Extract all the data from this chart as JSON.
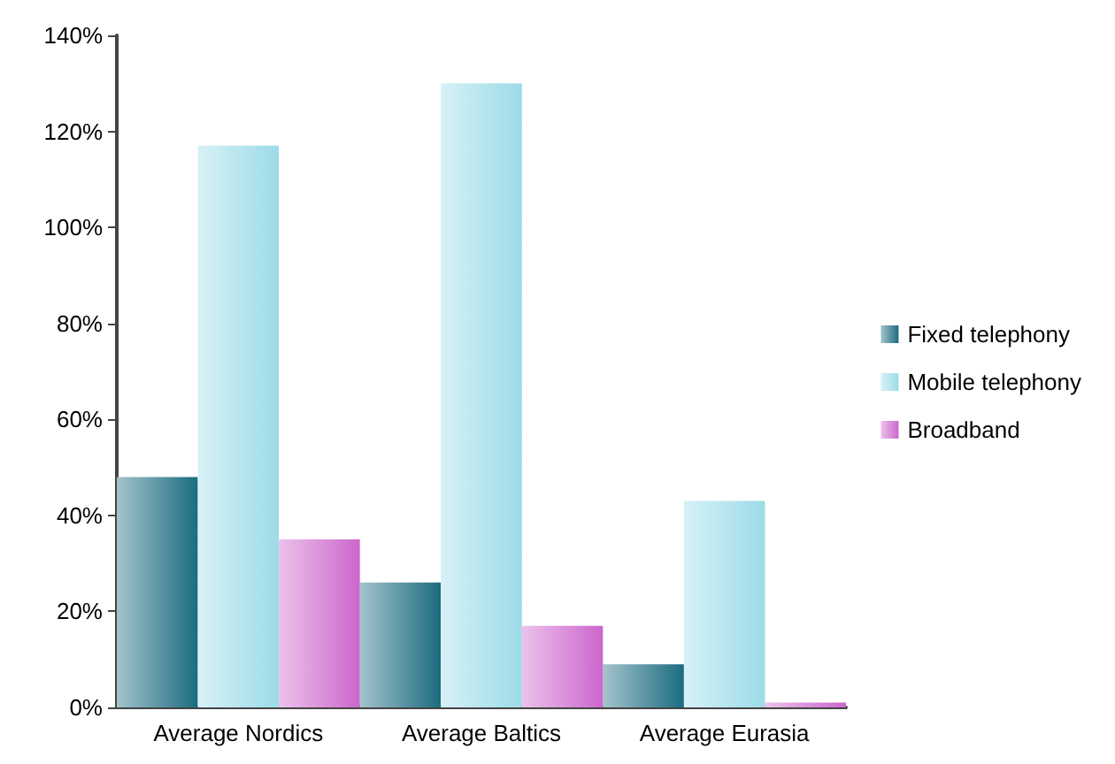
{
  "chart_data": {
    "type": "bar",
    "categories": [
      "Average Nordics",
      "Average Baltics",
      "Average Eurasia"
    ],
    "series": [
      {
        "name": "Fixed telephony",
        "color": "#1b6b80",
        "values": [
          48,
          26,
          9
        ]
      },
      {
        "name": "Mobile telephony",
        "color": "#9cdbe8",
        "values": [
          117,
          130,
          43
        ]
      },
      {
        "name": "Broadband",
        "color": "#cc66cc",
        "values": [
          35,
          17,
          1
        ]
      }
    ],
    "ylim": [
      0,
      140
    ],
    "yticks": [
      {
        "value": 0,
        "label": "0%"
      },
      {
        "value": 20,
        "label": "20%"
      },
      {
        "value": 40,
        "label": "40%"
      },
      {
        "value": 60,
        "label": "60%"
      },
      {
        "value": 80,
        "label": "80%"
      },
      {
        "value": 100,
        "label": "100%"
      },
      {
        "value": 120,
        "label": "120%"
      },
      {
        "value": 140,
        "label": "140%"
      }
    ],
    "grid": false,
    "legend": "right"
  }
}
